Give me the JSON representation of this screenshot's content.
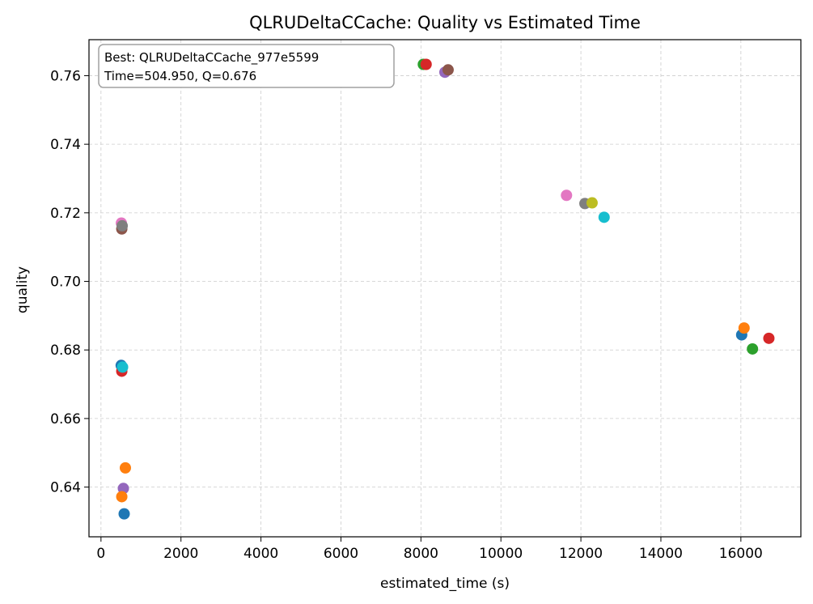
{
  "chart_data": {
    "type": "scatter",
    "title": "QLRUDeltaCCache: Quality vs Estimated Time",
    "xlabel": "estimated_time (s)",
    "ylabel": "quality",
    "xlim": [
      -300,
      17500
    ],
    "ylim": [
      0.6255,
      0.7705
    ],
    "xticks": [
      0,
      2000,
      4000,
      6000,
      8000,
      10000,
      12000,
      14000,
      16000
    ],
    "yticks": [
      0.64,
      0.66,
      0.68,
      0.7,
      0.72,
      0.74,
      0.76
    ],
    "xtick_labels": [
      "0",
      "2000",
      "4000",
      "6000",
      "8000",
      "10000",
      "12000",
      "14000",
      "16000"
    ],
    "ytick_labels": [
      "0.64",
      "0.66",
      "0.68",
      "0.70",
      "0.72",
      "0.74",
      "0.76"
    ],
    "grid": true,
    "annotation": {
      "line1": "Best: QLRUDeltaCCache_977e5599",
      "line2": "Time=504.950, Q=0.676",
      "placement": "top-left"
    },
    "points": [
      {
        "x": 510,
        "y": 0.717,
        "color": "#e377c2"
      },
      {
        "x": 520,
        "y": 0.7153,
        "color": "#8c564b"
      },
      {
        "x": 530,
        "y": 0.7162,
        "color": "#7f7f7f"
      },
      {
        "x": 505,
        "y": 0.6755,
        "color": "#1f77b4"
      },
      {
        "x": 520,
        "y": 0.6738,
        "color": "#d62728"
      },
      {
        "x": 540,
        "y": 0.675,
        "color": "#17becf"
      },
      {
        "x": 610,
        "y": 0.6456,
        "color": "#ff7f0e"
      },
      {
        "x": 560,
        "y": 0.6396,
        "color": "#9467bd"
      },
      {
        "x": 520,
        "y": 0.6372,
        "color": "#ff7f0e"
      },
      {
        "x": 580,
        "y": 0.6322,
        "color": "#1f77b4"
      },
      {
        "x": 8060,
        "y": 0.7633,
        "color": "#2ca02c"
      },
      {
        "x": 8130,
        "y": 0.7633,
        "color": "#d62728"
      },
      {
        "x": 8600,
        "y": 0.761,
        "color": "#9467bd"
      },
      {
        "x": 8680,
        "y": 0.7617,
        "color": "#8c564b"
      },
      {
        "x": 11640,
        "y": 0.7251,
        "color": "#e377c2"
      },
      {
        "x": 12100,
        "y": 0.7227,
        "color": "#7f7f7f"
      },
      {
        "x": 12280,
        "y": 0.7229,
        "color": "#bcbd22"
      },
      {
        "x": 12580,
        "y": 0.7187,
        "color": "#17becf"
      },
      {
        "x": 16020,
        "y": 0.6844,
        "color": "#1f77b4"
      },
      {
        "x": 16080,
        "y": 0.6864,
        "color": "#ff7f0e"
      },
      {
        "x": 16290,
        "y": 0.6803,
        "color": "#2ca02c"
      },
      {
        "x": 16700,
        "y": 0.6834,
        "color": "#d62728"
      }
    ]
  }
}
